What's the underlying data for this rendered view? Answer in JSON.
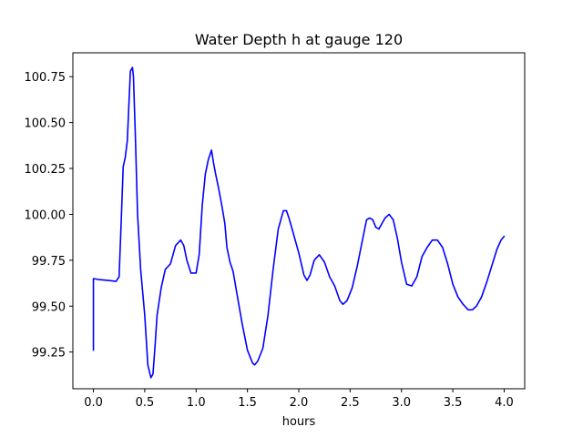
{
  "chart_data": {
    "type": "line",
    "title": "Water Depth h at gauge 120",
    "xlabel": "hours",
    "ylabel": "",
    "xlim": [
      -0.2,
      4.2
    ],
    "ylim": [
      99.05,
      100.88
    ],
    "grid": false,
    "xticks": [
      0.0,
      0.5,
      1.0,
      1.5,
      2.0,
      2.5,
      3.0,
      3.5,
      4.0
    ],
    "xtick_labels": [
      "0.0",
      "0.5",
      "1.0",
      "1.5",
      "2.0",
      "2.5",
      "3.0",
      "3.5",
      "4.0"
    ],
    "yticks": [
      99.25,
      99.5,
      99.75,
      100.0,
      100.25,
      100.5,
      100.75
    ],
    "ytick_labels": [
      "99.25",
      "99.50",
      "99.75",
      "100.00",
      "100.25",
      "100.50",
      "100.75"
    ],
    "series": [
      {
        "color": "#0000ff",
        "x": [
          0.0,
          0.0,
          0.05,
          0.15,
          0.22,
          0.25,
          0.27,
          0.29,
          0.31,
          0.33,
          0.36,
          0.38,
          0.39,
          0.41,
          0.43,
          0.46,
          0.5,
          0.53,
          0.56,
          0.58,
          0.6,
          0.62,
          0.66,
          0.7,
          0.75,
          0.8,
          0.85,
          0.88,
          0.91,
          0.95,
          1.0,
          1.03,
          1.06,
          1.09,
          1.12,
          1.15,
          1.17,
          1.19,
          1.22,
          1.25,
          1.28,
          1.3,
          1.33,
          1.36,
          1.4,
          1.45,
          1.5,
          1.55,
          1.57,
          1.6,
          1.65,
          1.7,
          1.75,
          1.8,
          1.85,
          1.88,
          1.91,
          1.95,
          2.0,
          2.05,
          2.08,
          2.11,
          2.15,
          2.2,
          2.25,
          2.3,
          2.35,
          2.4,
          2.43,
          2.47,
          2.52,
          2.57,
          2.62,
          2.66,
          2.69,
          2.72,
          2.75,
          2.78,
          2.81,
          2.84,
          2.88,
          2.92,
          2.96,
          3.0,
          3.05,
          3.1,
          3.15,
          3.2,
          3.25,
          3.3,
          3.35,
          3.4,
          3.45,
          3.5,
          3.55,
          3.6,
          3.65,
          3.69,
          3.73,
          3.78,
          3.83,
          3.88,
          3.93,
          3.97,
          4.0
        ],
        "y": [
          99.26,
          99.65,
          99.645,
          99.64,
          99.635,
          99.66,
          99.95,
          100.26,
          100.31,
          100.4,
          100.78,
          100.8,
          100.75,
          100.4,
          100.0,
          99.7,
          99.45,
          99.18,
          99.11,
          99.13,
          99.28,
          99.45,
          99.6,
          99.7,
          99.73,
          99.83,
          99.86,
          99.83,
          99.75,
          99.68,
          99.68,
          99.78,
          100.05,
          100.22,
          100.3,
          100.35,
          100.28,
          100.22,
          100.14,
          100.05,
          99.95,
          99.82,
          99.74,
          99.69,
          99.56,
          99.4,
          99.26,
          99.19,
          99.18,
          99.2,
          99.27,
          99.45,
          99.7,
          99.92,
          100.02,
          100.02,
          99.97,
          99.89,
          99.79,
          99.67,
          99.64,
          99.67,
          99.75,
          99.78,
          99.74,
          99.66,
          99.61,
          99.53,
          99.51,
          99.53,
          99.6,
          99.72,
          99.86,
          99.97,
          99.98,
          99.97,
          99.93,
          99.92,
          99.95,
          99.98,
          100.0,
          99.97,
          99.87,
          99.74,
          99.62,
          99.61,
          99.66,
          99.77,
          99.82,
          99.86,
          99.86,
          99.82,
          99.73,
          99.62,
          99.55,
          99.51,
          99.48,
          99.48,
          99.5,
          99.55,
          99.63,
          99.72,
          99.81,
          99.86,
          99.88
        ]
      }
    ]
  }
}
